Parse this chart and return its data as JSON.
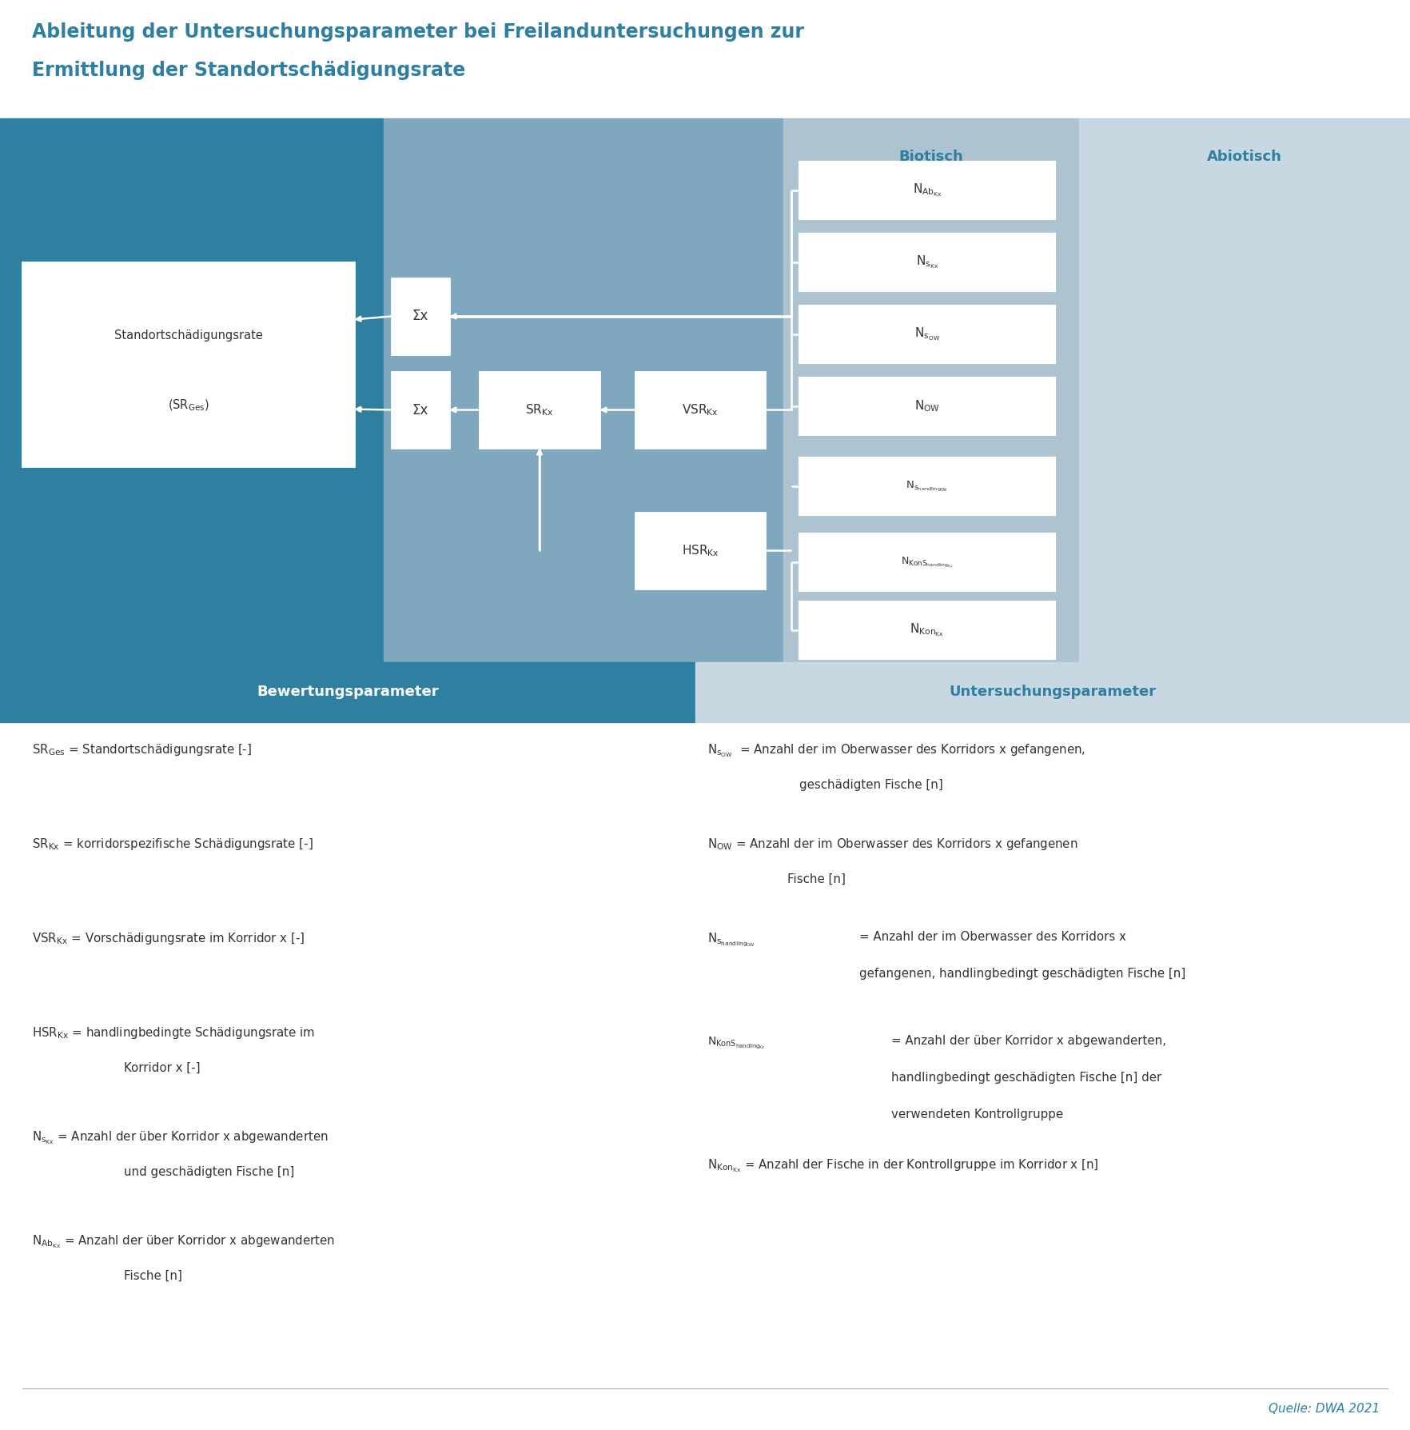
{
  "title_line1": "Ableitung der Untersuchungsparameter bei Freilanduntersuchungen zur",
  "title_line2": "Ermittlung der Standortschädigungsrate",
  "title_color": "#2e7fa0",
  "bg_color": "#ffffff",
  "dark_teal": "#2e7fa0",
  "mid_blue": "#7fa8be",
  "light_blue": "#aec3d0",
  "lighter_blue": "#c8d8e2",
  "box_fill": "#ffffff",
  "text_dark": "#333333",
  "bewertung_header": "Bewertungsparameter",
  "untersuchung_header": "Untersuchungsparameter",
  "biotisch_label": "Biotisch",
  "abiotisch_label": "Abiotisch"
}
